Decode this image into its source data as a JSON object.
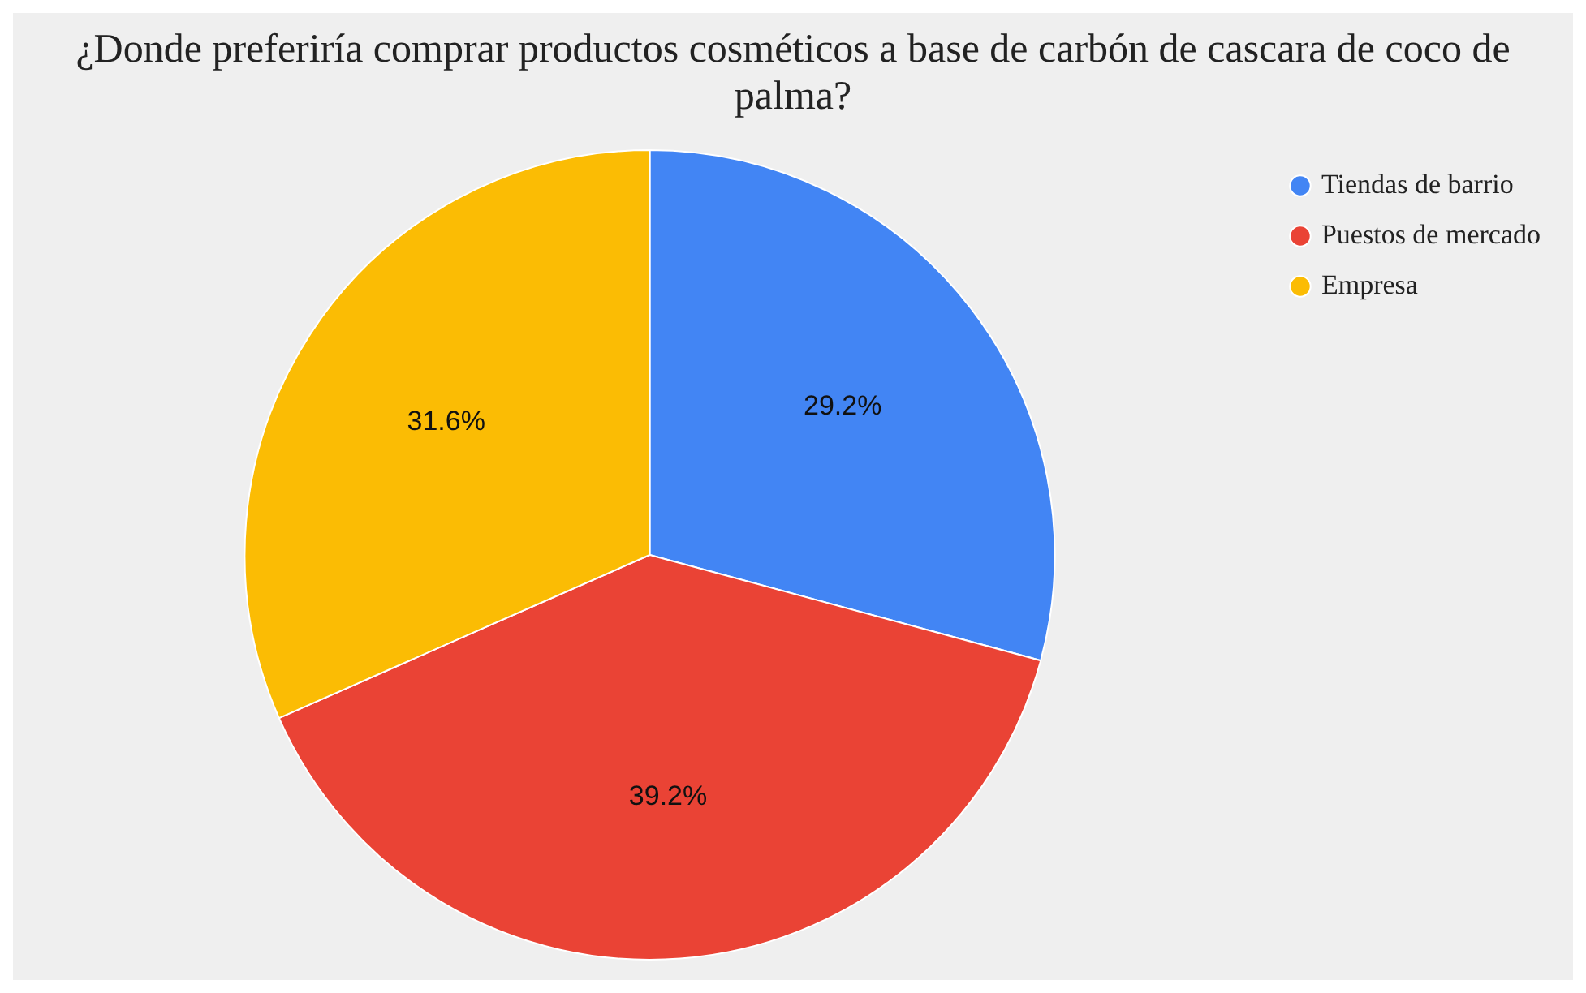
{
  "chart_data": {
    "type": "pie",
    "title": "¿Donde preferiría comprar productos cosméticos a base de carbón de cascara de coco de palma?",
    "categories": [
      "Tiendas de barrio",
      "Puestos de mercado",
      "Empresa"
    ],
    "values": [
      29.2,
      39.2,
      31.6
    ],
    "value_labels": [
      "29.2%",
      "39.2%",
      "31.6%"
    ],
    "colors": [
      "#4285f4",
      "#ea4335",
      "#fbbc04"
    ],
    "legend": "top right"
  }
}
